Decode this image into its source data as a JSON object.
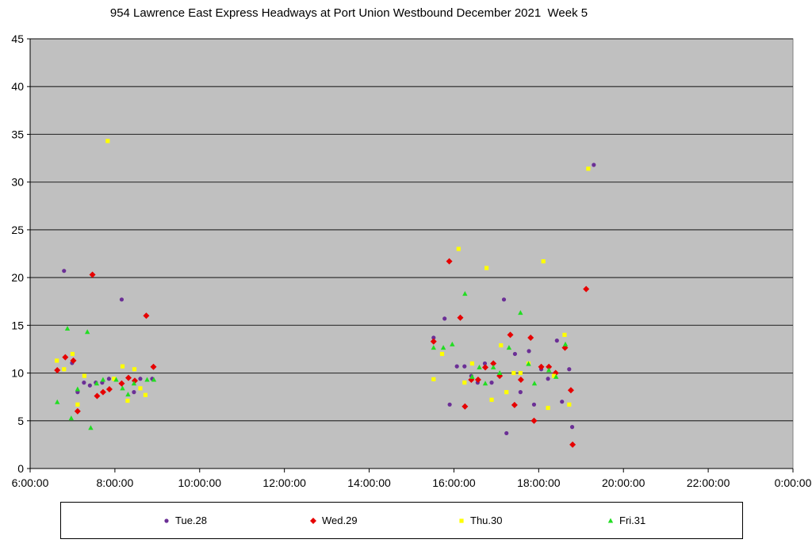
{
  "chart_data": {
    "type": "scatter",
    "title": "954 Lawrence East Express Headways at Port Union Westbound December 2021  Week 5",
    "xlabel": "",
    "ylabel": "",
    "x_unit": "hours of day",
    "xlim": [
      6,
      24
    ],
    "ylim": [
      0,
      45
    ],
    "x_ticks": [
      6,
      8,
      10,
      12,
      14,
      16,
      18,
      20,
      22,
      24
    ],
    "x_tick_labels": [
      "6:00:00",
      "8:00:00",
      "10:00:00",
      "12:00:00",
      "14:00:00",
      "16:00:00",
      "18:00:00",
      "20:00:00",
      "22:00:00",
      "0:00:00"
    ],
    "y_ticks": [
      0,
      5,
      10,
      15,
      20,
      25,
      30,
      35,
      40,
      45
    ],
    "y_tick_labels": [
      "0",
      "5",
      "10",
      "15",
      "20",
      "25",
      "30",
      "35",
      "40",
      "45"
    ],
    "grid": "horizontal",
    "legend_position": "bottom",
    "series": [
      {
        "name": "Tue.28",
        "marker": "circle",
        "color": "#6b2f96",
        "points": [
          [
            6.8,
            20.7
          ],
          [
            6.99,
            11.05
          ],
          [
            7.12,
            8.0
          ],
          [
            7.27,
            9.0
          ],
          [
            7.41,
            8.7
          ],
          [
            7.55,
            9.0
          ],
          [
            7.7,
            9.0
          ],
          [
            7.86,
            9.4
          ],
          [
            8.16,
            17.7
          ],
          [
            8.45,
            8.0
          ],
          [
            8.6,
            9.4
          ],
          [
            8.88,
            9.4
          ],
          [
            15.52,
            13.7
          ],
          [
            15.78,
            15.7
          ],
          [
            15.9,
            6.7
          ],
          [
            16.07,
            10.7
          ],
          [
            16.25,
            10.7
          ],
          [
            16.41,
            9.7
          ],
          [
            16.56,
            9.0
          ],
          [
            16.73,
            11.0
          ],
          [
            16.89,
            9.0
          ],
          [
            17.18,
            17.7
          ],
          [
            17.24,
            3.7
          ],
          [
            17.44,
            12.0
          ],
          [
            17.57,
            8.0
          ],
          [
            17.77,
            12.3
          ],
          [
            17.89,
            6.7
          ],
          [
            18.06,
            10.4
          ],
          [
            18.22,
            9.4
          ],
          [
            18.43,
            13.4
          ],
          [
            18.55,
            7.0
          ],
          [
            18.72,
            10.4
          ],
          [
            18.79,
            4.35
          ],
          [
            19.3,
            31.8
          ]
        ]
      },
      {
        "name": "Wed.29",
        "marker": "diamond",
        "color": "#e60000",
        "points": [
          [
            6.64,
            10.3
          ],
          [
            6.83,
            11.65
          ],
          [
            7.02,
            11.3
          ],
          [
            7.12,
            6.0
          ],
          [
            7.47,
            20.3
          ],
          [
            7.58,
            7.6
          ],
          [
            7.72,
            8.0
          ],
          [
            7.87,
            8.3
          ],
          [
            8.16,
            8.9
          ],
          [
            8.32,
            9.5
          ],
          [
            8.47,
            9.2
          ],
          [
            8.74,
            16.0
          ],
          [
            8.91,
            10.65
          ],
          [
            15.52,
            13.3
          ],
          [
            15.89,
            21.7
          ],
          [
            16.15,
            15.8
          ],
          [
            16.26,
            6.5
          ],
          [
            16.41,
            9.3
          ],
          [
            16.57,
            9.3
          ],
          [
            16.74,
            10.6
          ],
          [
            16.93,
            11.0
          ],
          [
            17.08,
            9.7
          ],
          [
            17.33,
            14.0
          ],
          [
            17.43,
            6.65
          ],
          [
            17.58,
            9.3
          ],
          [
            17.81,
            13.7
          ],
          [
            17.89,
            5.0
          ],
          [
            18.06,
            10.65
          ],
          [
            18.24,
            10.65
          ],
          [
            18.4,
            10.0
          ],
          [
            18.62,
            12.65
          ],
          [
            18.76,
            8.2
          ],
          [
            18.8,
            2.5
          ],
          [
            19.12,
            18.8
          ]
        ]
      },
      {
        "name": "Thu.30",
        "marker": "square",
        "color": "#ffff00",
        "points": [
          [
            6.63,
            11.3
          ],
          [
            6.8,
            10.4
          ],
          [
            7.0,
            12.0
          ],
          [
            7.12,
            6.7
          ],
          [
            7.28,
            9.7
          ],
          [
            7.83,
            34.3
          ],
          [
            7.98,
            9.4
          ],
          [
            8.18,
            10.7
          ],
          [
            8.3,
            7.1
          ],
          [
            8.46,
            10.4
          ],
          [
            8.6,
            8.4
          ],
          [
            8.72,
            7.7
          ],
          [
            15.52,
            9.35
          ],
          [
            15.72,
            12.0
          ],
          [
            16.11,
            23.0
          ],
          [
            16.25,
            9.0
          ],
          [
            16.43,
            11.0
          ],
          [
            16.77,
            21.0
          ],
          [
            16.89,
            7.2
          ],
          [
            17.11,
            12.9
          ],
          [
            17.24,
            8.0
          ],
          [
            17.41,
            10.0
          ],
          [
            17.57,
            10.0
          ],
          [
            17.76,
            11.0
          ],
          [
            18.11,
            21.7
          ],
          [
            18.22,
            6.35
          ],
          [
            18.36,
            9.7
          ],
          [
            18.61,
            14.0
          ],
          [
            18.72,
            6.7
          ],
          [
            19.17,
            31.4
          ]
        ]
      },
      {
        "name": "Fri.31",
        "marker": "triangle",
        "color": "#22dd22",
        "points": [
          [
            6.64,
            6.95
          ],
          [
            6.88,
            14.65
          ],
          [
            6.97,
            5.26
          ],
          [
            7.12,
            8.3
          ],
          [
            7.35,
            14.3
          ],
          [
            7.43,
            4.26
          ],
          [
            7.57,
            8.9
          ],
          [
            7.72,
            9.3
          ],
          [
            8.03,
            9.3
          ],
          [
            8.18,
            8.4
          ],
          [
            8.31,
            7.75
          ],
          [
            8.45,
            8.9
          ],
          [
            8.76,
            9.3
          ],
          [
            8.92,
            9.3
          ],
          [
            15.52,
            12.65
          ],
          [
            15.75,
            12.65
          ],
          [
            15.96,
            13.0
          ],
          [
            16.26,
            18.3
          ],
          [
            16.43,
            9.6
          ],
          [
            16.6,
            10.6
          ],
          [
            16.74,
            8.9
          ],
          [
            16.93,
            10.6
          ],
          [
            17.08,
            10.0
          ],
          [
            17.3,
            12.65
          ],
          [
            17.57,
            16.3
          ],
          [
            17.76,
            10.95
          ],
          [
            17.9,
            8.9
          ],
          [
            18.24,
            10.3
          ],
          [
            18.41,
            9.6
          ],
          [
            18.63,
            13.0
          ]
        ]
      }
    ]
  }
}
